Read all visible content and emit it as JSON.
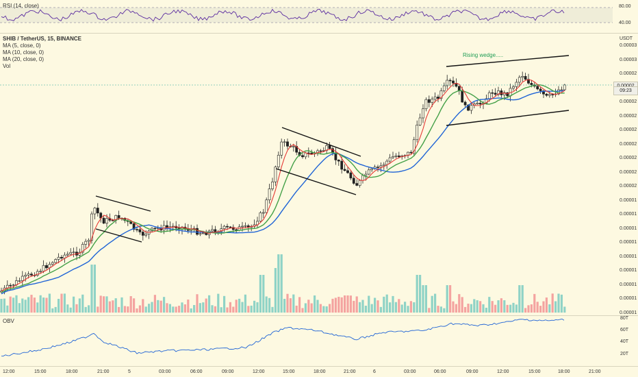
{
  "chart_data": {
    "type": "candlestick",
    "symbol_title": "SHIB / TetherUS, 15, BINANCE",
    "currency": "USDT",
    "indicators": [
      "MA (5, close, 0)",
      "MA (10, close, 0)",
      "MA (20, close, 0)",
      "Vol"
    ],
    "rsi": {
      "label": "RSI (14, close)",
      "ticks": [
        "80.00",
        "40.00"
      ]
    },
    "obv": {
      "label": "OBV",
      "ticks": [
        "80T",
        "60T",
        "40T",
        "20T"
      ]
    },
    "price_ticks": [
      "0.00003",
      "0.00003",
      "0.00002",
      "0.00002",
      "0.00002",
      "0.00002",
      "0.00002",
      "0.00002",
      "0.00002",
      "0.00002",
      "0.00002",
      "0.00001",
      "0.00001",
      "0.00001",
      "0.00001",
      "0.00001",
      "0.00001",
      "0.00001",
      "0.00001",
      "0.00001"
    ],
    "current_price": "0.00002",
    "countdown": "09:23",
    "time_ticks": [
      "12:00",
      "15:00",
      "18:00",
      "21:00",
      "5",
      "03:00",
      "06:00",
      "09:00",
      "12:00",
      "15:00",
      "18:00",
      "21:00",
      "6",
      "03:00",
      "06:00",
      "09:00",
      "12:00",
      "15:00",
      "18:00",
      "21:00"
    ],
    "annotation": "Rising wedge.....",
    "colors": {
      "up": "#26a69a",
      "down": "#ef5350",
      "ma5": "#e53935",
      "ma10": "#43a047",
      "ma20": "#1e63d6",
      "rsi": "#5b2ca0",
      "obv": "#1e63d6",
      "background": "#fdf9e1"
    }
  }
}
